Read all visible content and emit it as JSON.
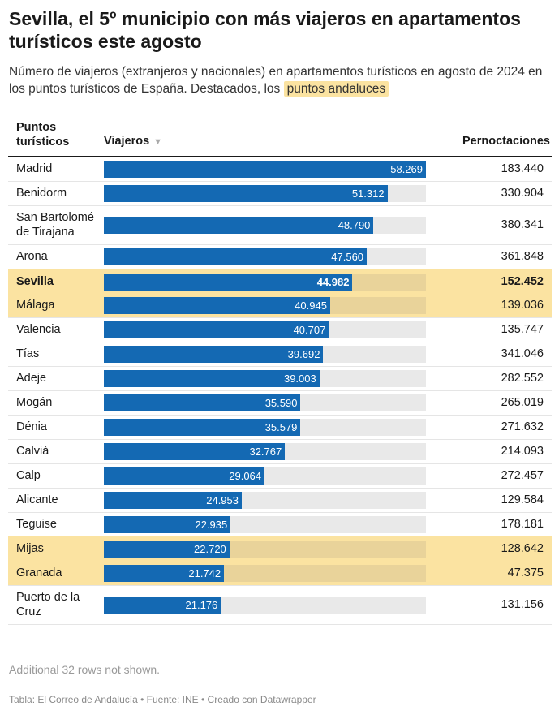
{
  "header": {
    "title": "Sevilla, el 5º municipio con más viajeros en apartamentos turísticos este agosto",
    "subtitle_text": "Número de viajeros (extranjeros y nacionales) en apartamentos turísticos en agosto de 2024 en los puntos turísticos de España. Destacados, los",
    "subtitle_highlight": "puntos andaluces"
  },
  "table": {
    "col_name": "Puntos turísticos",
    "col_viajeros": "Viajeros",
    "sort_icon": "triangle-down-icon",
    "col_pernoctaciones": "Pernoctaciones"
  },
  "chart_data": {
    "type": "table",
    "columns": [
      "Puntos turísticos",
      "Viajeros",
      "Pernoctaciones"
    ],
    "bar_column": "Viajeros",
    "bar_max": 58269,
    "colors": {
      "bar": "#1469b3",
      "bar_track": "#e9e9e9",
      "highlight": "#fbe3a1"
    },
    "rows": [
      {
        "name": "Madrid",
        "viajeros": 58269,
        "viajeros_label": "58.269",
        "pernoctaciones": "183.440",
        "highlight": false,
        "bold": false
      },
      {
        "name": "Benidorm",
        "viajeros": 51312,
        "viajeros_label": "51.312",
        "pernoctaciones": "330.904",
        "highlight": false,
        "bold": false
      },
      {
        "name": "San Bartolomé de Tirajana",
        "viajeros": 48790,
        "viajeros_label": "48.790",
        "pernoctaciones": "380.341",
        "highlight": false,
        "bold": false
      },
      {
        "name": "Arona",
        "viajeros": 47560,
        "viajeros_label": "47.560",
        "pernoctaciones": "361.848",
        "highlight": false,
        "bold": false
      },
      {
        "name": "Sevilla",
        "viajeros": 44982,
        "viajeros_label": "44.982",
        "pernoctaciones": "152.452",
        "highlight": true,
        "bold": true
      },
      {
        "name": "Málaga",
        "viajeros": 40945,
        "viajeros_label": "40.945",
        "pernoctaciones": "139.036",
        "highlight": true,
        "bold": false
      },
      {
        "name": "Valencia",
        "viajeros": 40707,
        "viajeros_label": "40.707",
        "pernoctaciones": "135.747",
        "highlight": false,
        "bold": false
      },
      {
        "name": "Tías",
        "viajeros": 39692,
        "viajeros_label": "39.692",
        "pernoctaciones": "341.046",
        "highlight": false,
        "bold": false
      },
      {
        "name": "Adeje",
        "viajeros": 39003,
        "viajeros_label": "39.003",
        "pernoctaciones": "282.552",
        "highlight": false,
        "bold": false
      },
      {
        "name": "Mogán",
        "viajeros": 35590,
        "viajeros_label": "35.590",
        "pernoctaciones": "265.019",
        "highlight": false,
        "bold": false
      },
      {
        "name": "Dénia",
        "viajeros": 35579,
        "viajeros_label": "35.579",
        "pernoctaciones": "271.632",
        "highlight": false,
        "bold": false
      },
      {
        "name": "Calvià",
        "viajeros": 32767,
        "viajeros_label": "32.767",
        "pernoctaciones": "214.093",
        "highlight": false,
        "bold": false
      },
      {
        "name": "Calp",
        "viajeros": 29064,
        "viajeros_label": "29.064",
        "pernoctaciones": "272.457",
        "highlight": false,
        "bold": false
      },
      {
        "name": "Alicante",
        "viajeros": 24953,
        "viajeros_label": "24.953",
        "pernoctaciones": "129.584",
        "highlight": false,
        "bold": false
      },
      {
        "name": "Teguise",
        "viajeros": 22935,
        "viajeros_label": "22.935",
        "pernoctaciones": "178.181",
        "highlight": false,
        "bold": false
      },
      {
        "name": "Mijas",
        "viajeros": 22720,
        "viajeros_label": "22.720",
        "pernoctaciones": "128.642",
        "highlight": true,
        "bold": false
      },
      {
        "name": "Granada",
        "viajeros": 21742,
        "viajeros_label": "21.742",
        "pernoctaciones": "47.375",
        "highlight": true,
        "bold": false
      },
      {
        "name": "Puerto de la Cruz",
        "viajeros": 21176,
        "viajeros_label": "21.176",
        "pernoctaciones": "131.156",
        "highlight": false,
        "bold": false
      }
    ]
  },
  "more_rows": "Additional 32 rows not shown.",
  "footer": "Tabla: El Correo de Andalucía • Fuente: INE • Creado con Datawrapper"
}
